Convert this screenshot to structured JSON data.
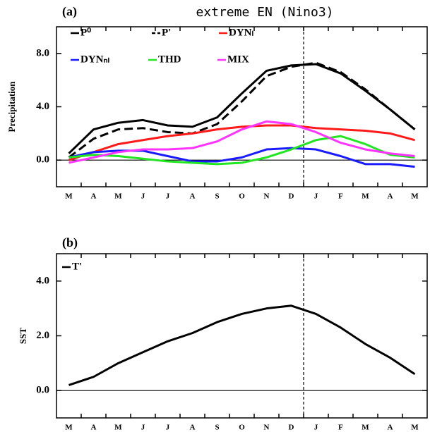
{
  "chart_data": [
    {
      "type": "line",
      "label": "(a)",
      "title": "extreme EN (Nino3)",
      "y_label": "Precipitation",
      "categories": [
        "M",
        "A",
        "M",
        "J",
        "J",
        "A",
        "S",
        "O",
        "N",
        "D",
        "J",
        "F",
        "M",
        "A",
        "M"
      ],
      "ylim": [
        -2,
        10
      ],
      "yticks": [
        {
          "value": 0,
          "label": "0.0"
        },
        {
          "value": 4,
          "label": "4.0"
        },
        {
          "value": 8,
          "label": "8.0"
        }
      ],
      "series": [
        {
          "name": "P⁰",
          "color": "#000000",
          "line_style": "solid",
          "values": [
            0.5,
            2.3,
            2.8,
            3.0,
            2.6,
            2.5,
            3.2,
            5.0,
            6.7,
            7.1,
            7.2,
            6.5,
            5.2,
            3.8,
            2.3
          ]
        },
        {
          "name": "P'",
          "color": "#000000",
          "line_style": "dashed",
          "values": [
            0.2,
            1.6,
            2.3,
            2.4,
            2.1,
            2.0,
            2.7,
            4.4,
            6.3,
            7.0,
            7.3,
            6.6,
            5.3,
            3.8,
            2.3
          ]
        },
        {
          "name": "DYNₗ",
          "color": "#ff1a1a",
          "line_style": "solid",
          "values": [
            0.0,
            0.6,
            1.2,
            1.5,
            1.8,
            2.0,
            2.3,
            2.5,
            2.6,
            2.6,
            2.4,
            2.3,
            2.2,
            2.0,
            1.5
          ]
        },
        {
          "name": "DYNₙₗ",
          "color": "#1a1aff",
          "line_style": "solid",
          "values": [
            0.2,
            0.6,
            0.7,
            0.7,
            0.3,
            -0.1,
            -0.1,
            0.2,
            0.8,
            0.9,
            0.8,
            0.3,
            -0.3,
            -0.3,
            -0.5
          ]
        },
        {
          "name": "THD",
          "color": "#22e622",
          "line_style": "solid",
          "values": [
            0.2,
            0.4,
            0.3,
            0.1,
            -0.1,
            -0.2,
            -0.3,
            -0.2,
            0.2,
            0.8,
            1.5,
            1.8,
            1.2,
            0.4,
            0.2
          ]
        },
        {
          "name": "MIX",
          "color": "#ff33ff",
          "line_style": "solid",
          "values": [
            -0.2,
            0.2,
            0.6,
            0.8,
            0.8,
            0.9,
            1.4,
            2.3,
            2.9,
            2.7,
            2.1,
            1.3,
            0.8,
            0.5,
            0.3
          ]
        }
      ]
    },
    {
      "type": "line",
      "label": "(b)",
      "y_label": "SST",
      "categories": [
        "M",
        "A",
        "M",
        "J",
        "J",
        "A",
        "S",
        "O",
        "N",
        "D",
        "J",
        "F",
        "M",
        "A",
        "M"
      ],
      "ylim": [
        -1,
        5
      ],
      "yticks": [
        {
          "value": 0,
          "label": "0.0"
        },
        {
          "value": 2,
          "label": "2.0"
        },
        {
          "value": 4,
          "label": "4.0"
        }
      ],
      "series": [
        {
          "name": "T'",
          "color": "#000000",
          "line_style": "solid",
          "values": [
            0.2,
            0.5,
            1.0,
            1.4,
            1.8,
            2.1,
            2.5,
            2.8,
            3.0,
            3.1,
            2.8,
            2.3,
            1.7,
            1.2,
            0.6
          ]
        }
      ]
    }
  ]
}
